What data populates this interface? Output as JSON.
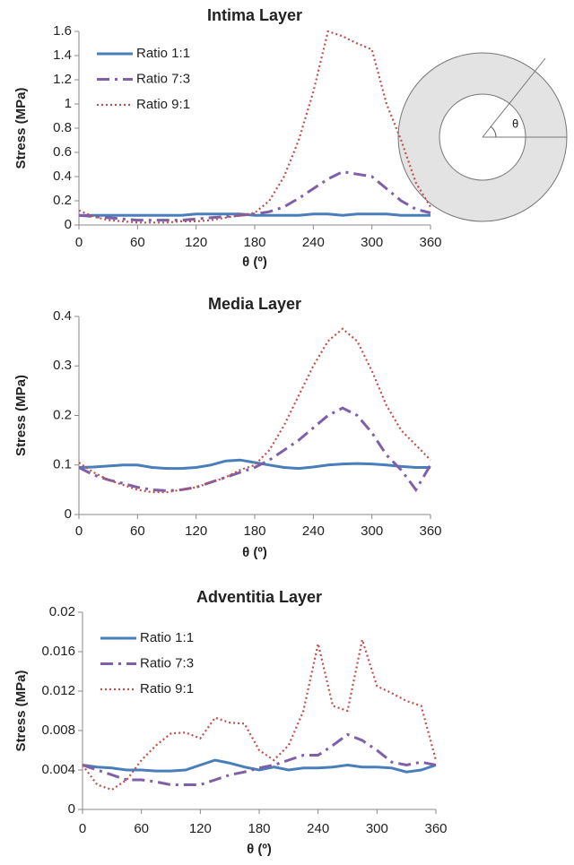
{
  "chart_data": [
    {
      "type": "line",
      "title": "Intima Layer",
      "xlabel": "θ (º)",
      "ylabel": "Stress (MPa)",
      "annotation": "θ",
      "x": [
        0,
        15,
        30,
        45,
        60,
        75,
        90,
        105,
        120,
        135,
        150,
        165,
        180,
        195,
        210,
        225,
        240,
        255,
        270,
        285,
        300,
        315,
        330,
        345,
        360
      ],
      "xlim": [
        0,
        360
      ],
      "xticks": [
        0,
        60,
        120,
        180,
        240,
        300,
        360
      ],
      "ylim": [
        0,
        1.6
      ],
      "yticks": [
        0,
        0.2,
        0.4,
        0.6,
        0.8,
        1,
        1.2,
        1.4,
        1.6
      ],
      "legend": true,
      "series": [
        {
          "name": "Ratio 1:1",
          "color": "#4a7ebb",
          "style": "solid",
          "values": [
            0.08,
            0.08,
            0.08,
            0.08,
            0.08,
            0.08,
            0.08,
            0.08,
            0.09,
            0.09,
            0.09,
            0.09,
            0.08,
            0.08,
            0.08,
            0.08,
            0.09,
            0.09,
            0.08,
            0.09,
            0.09,
            0.09,
            0.08,
            0.08,
            0.08
          ]
        },
        {
          "name": "Ratio 7:3",
          "color": "#7e5fa8",
          "style": "dashdot",
          "values": [
            0.08,
            0.07,
            0.06,
            0.05,
            0.04,
            0.04,
            0.04,
            0.04,
            0.05,
            0.06,
            0.07,
            0.08,
            0.09,
            0.11,
            0.15,
            0.22,
            0.3,
            0.38,
            0.44,
            0.42,
            0.4,
            0.3,
            0.2,
            0.13,
            0.1
          ]
        },
        {
          "name": "Ratio 9:1",
          "color": "#c0504d",
          "style": "dotted",
          "values": [
            0.12,
            0.07,
            0.04,
            0.03,
            0.02,
            0.02,
            0.02,
            0.03,
            0.03,
            0.04,
            0.06,
            0.08,
            0.1,
            0.2,
            0.4,
            0.7,
            1.1,
            1.6,
            1.56,
            1.5,
            1.45,
            1.0,
            0.7,
            0.35,
            0.15
          ]
        }
      ]
    },
    {
      "type": "line",
      "title": "Media Layer",
      "xlabel": "θ (º)",
      "ylabel": "Stress (MPa)",
      "x": [
        0,
        15,
        30,
        45,
        60,
        75,
        90,
        105,
        120,
        135,
        150,
        165,
        180,
        195,
        210,
        225,
        240,
        255,
        270,
        285,
        300,
        315,
        330,
        345,
        360
      ],
      "xlim": [
        0,
        360
      ],
      "xticks": [
        0,
        60,
        120,
        180,
        240,
        300,
        360
      ],
      "ylim": [
        0,
        0.4
      ],
      "yticks": [
        0,
        0.1,
        0.2,
        0.3,
        0.4
      ],
      "legend": false,
      "series": [
        {
          "color": "#4a7ebb",
          "style": "solid",
          "values": [
            0.095,
            0.096,
            0.098,
            0.1,
            0.1,
            0.095,
            0.093,
            0.093,
            0.095,
            0.1,
            0.108,
            0.11,
            0.105,
            0.1,
            0.095,
            0.093,
            0.096,
            0.1,
            0.102,
            0.103,
            0.102,
            0.1,
            0.097,
            0.095,
            0.095
          ]
        },
        {
          "color": "#7e5fa8",
          "style": "dashdot",
          "values": [
            0.095,
            0.08,
            0.07,
            0.063,
            0.055,
            0.05,
            0.048,
            0.05,
            0.055,
            0.065,
            0.075,
            0.085,
            0.095,
            0.11,
            0.13,
            0.15,
            0.175,
            0.2,
            0.215,
            0.2,
            0.165,
            0.12,
            0.09,
            0.05,
            0.1
          ]
        },
        {
          "color": "#c0504d",
          "style": "dotted",
          "values": [
            0.105,
            0.085,
            0.07,
            0.06,
            0.05,
            0.045,
            0.045,
            0.05,
            0.055,
            0.065,
            0.075,
            0.09,
            0.1,
            0.13,
            0.18,
            0.24,
            0.3,
            0.35,
            0.375,
            0.35,
            0.29,
            0.22,
            0.17,
            0.14,
            0.11
          ]
        }
      ]
    },
    {
      "type": "line",
      "title": "Adventitia Layer",
      "xlabel": "θ (º)",
      "ylabel": "Stress (MPa)",
      "x": [
        0,
        15,
        30,
        45,
        60,
        75,
        90,
        105,
        120,
        135,
        150,
        165,
        180,
        195,
        210,
        225,
        240,
        255,
        270,
        285,
        300,
        315,
        330,
        345,
        360
      ],
      "xlim": [
        0,
        360
      ],
      "xticks": [
        0,
        60,
        120,
        180,
        240,
        300,
        360
      ],
      "ylim": [
        0,
        0.02
      ],
      "yticks": [
        0,
        0.004,
        0.008,
        0.012,
        0.016,
        0.02
      ],
      "legend": true,
      "series": [
        {
          "name": "Ratio 1:1",
          "color": "#4a7ebb",
          "style": "solid",
          "values": [
            0.0045,
            0.0043,
            0.0042,
            0.004,
            0.004,
            0.0039,
            0.0039,
            0.004,
            0.0045,
            0.005,
            0.0047,
            0.0043,
            0.004,
            0.0043,
            0.004,
            0.0042,
            0.0042,
            0.0043,
            0.0045,
            0.0043,
            0.0043,
            0.0042,
            0.0038,
            0.004,
            0.0045
          ]
        },
        {
          "name": "Ratio 7:3",
          "color": "#7e5fa8",
          "style": "dashdot",
          "values": [
            0.0045,
            0.004,
            0.0035,
            0.003,
            0.003,
            0.0028,
            0.0025,
            0.0025,
            0.0025,
            0.003,
            0.0035,
            0.0038,
            0.0042,
            0.0045,
            0.005,
            0.0055,
            0.0055,
            0.0065,
            0.0076,
            0.007,
            0.006,
            0.0048,
            0.0045,
            0.0048,
            0.0045
          ]
        },
        {
          "name": "Ratio 9:1",
          "color": "#c0504d",
          "style": "dotted",
          "values": [
            0.0045,
            0.0025,
            0.002,
            0.003,
            0.005,
            0.0065,
            0.0077,
            0.0078,
            0.0072,
            0.0093,
            0.0088,
            0.0087,
            0.006,
            0.005,
            0.0065,
            0.01,
            0.0168,
            0.0105,
            0.01,
            0.0172,
            0.0125,
            0.0118,
            0.011,
            0.0105,
            0.005
          ]
        }
      ]
    }
  ]
}
